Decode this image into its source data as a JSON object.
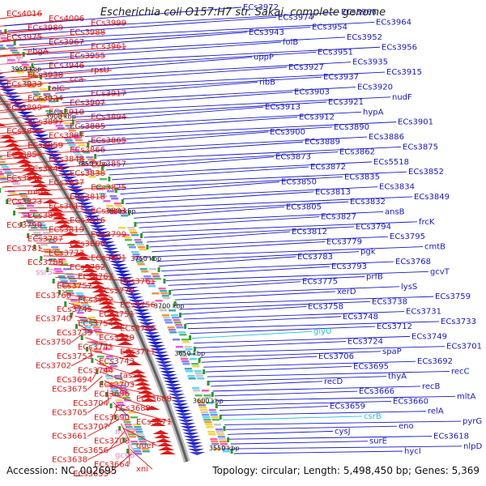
{
  "title": "Escherichia coli O157:H7 str. Sakai, complete genome",
  "footer": {
    "accession": "Accession: NC_002695",
    "summary": "Topology: circular; Length: 5,498,450 bp; Genes: 5,369"
  },
  "colors": {
    "forward": "#e01818",
    "reverse": "#1818d0",
    "rna_pink": "#f080c8",
    "rna_cyan": "#20c0e0",
    "backbone": "#808080"
  },
  "kbp_marks": [
    "3950 kbp",
    "3900 kbp",
    "3850 kbp",
    "3800 kbp",
    "3750 kbp",
    "3700 kbp",
    "3650 kbp",
    "3600 kbp",
    "3550 kbp"
  ],
  "left_labels": [
    {
      "t": "ECs4016",
      "c": "f"
    },
    {
      "t": "ECs4006",
      "c": "f"
    },
    {
      "t": "ECs3999",
      "c": "f"
    },
    {
      "t": "ECs3989",
      "c": "f"
    },
    {
      "t": "ECs3988",
      "c": "f"
    },
    {
      "t": "ECs3975",
      "c": "f"
    },
    {
      "t": "ECs3967",
      "c": "f"
    },
    {
      "t": "ECs3961",
      "c": "f"
    },
    {
      "t": "ebgA",
      "c": "f"
    },
    {
      "t": "ECs3955",
      "c": "f"
    },
    {
      "t": "ileX",
      "c": "p"
    },
    {
      "t": "ECs3946",
      "c": "f"
    },
    {
      "t": "rpsU",
      "c": "f"
    },
    {
      "t": "ECs3938",
      "c": "f"
    },
    {
      "t": "cca",
      "c": "f"
    },
    {
      "t": "ECs3933",
      "c": "f"
    },
    {
      "t": "tolC",
      "c": "f"
    },
    {
      "t": "ECs3917",
      "c": "f"
    },
    {
      "t": "ECs3924",
      "c": "f"
    },
    {
      "t": "ECs3907",
      "c": "f"
    },
    {
      "t": "ECs3899",
      "c": "f"
    },
    {
      "t": "ECs3910",
      "c": "f"
    },
    {
      "t": "ECs3894",
      "c": "f"
    },
    {
      "t": "ECs3897",
      "c": "f"
    },
    {
      "t": "ECs3885",
      "c": "f"
    },
    {
      "t": "ECs3874",
      "c": "f"
    },
    {
      "t": "ECs3887",
      "c": "f"
    },
    {
      "t": "ECs3865",
      "c": "f"
    },
    {
      "t": "ECs3859",
      "c": "f"
    },
    {
      "t": "ECs3866",
      "c": "f"
    },
    {
      "t": "ECs3854",
      "c": "f"
    },
    {
      "t": "ECs3848",
      "c": "f"
    },
    {
      "t": "ECs3857",
      "c": "f"
    },
    {
      "t": "ECs3843",
      "c": "f"
    },
    {
      "t": "ECs3838",
      "c": "f"
    },
    {
      "t": "ECs3846",
      "c": "f"
    },
    {
      "t": "ECs3837",
      "c": "f"
    },
    {
      "t": "ECs3825",
      "c": "f"
    },
    {
      "t": "mltC",
      "c": "f"
    },
    {
      "t": "ECs3818",
      "c": "f"
    },
    {
      "t": "ECs3823",
      "c": "f"
    },
    {
      "t": "ECs3811",
      "c": "f"
    },
    {
      "t": "ECs3803",
      "c": "f"
    },
    {
      "t": "ECs3831",
      "c": "f"
    },
    {
      "t": "ECs3816",
      "c": "f"
    },
    {
      "t": "ECs3790",
      "c": "f"
    },
    {
      "t": "ECs3819",
      "c": "f"
    },
    {
      "t": "ECs3799",
      "c": "f"
    },
    {
      "t": "ECs3787",
      "c": "f"
    },
    {
      "t": "ECs3800",
      "c": "f"
    },
    {
      "t": "ECs3781",
      "c": "f"
    },
    {
      "t": "ECs3773",
      "c": "f"
    },
    {
      "t": "ECs3801",
      "c": "f"
    },
    {
      "t": "ECs3788",
      "c": "f"
    },
    {
      "t": "ECs3782",
      "c": "f"
    },
    {
      "t": "ssrS",
      "c": "p"
    },
    {
      "t": "ECs3767",
      "c": "f"
    },
    {
      "t": "ECs3761",
      "c": "f"
    },
    {
      "t": "ECs3757",
      "c": "f"
    },
    {
      "t": "ECs3770",
      "c": "f"
    },
    {
      "t": "ECs3760",
      "c": "f"
    },
    {
      "t": "ECs3752",
      "c": "f"
    },
    {
      "t": "ECs3756",
      "c": "f"
    },
    {
      "t": "ECs3745",
      "c": "f"
    },
    {
      "t": "ECs3751",
      "c": "f"
    },
    {
      "t": "ECs3740",
      "c": "f"
    },
    {
      "t": "ECs3754",
      "c": "f"
    },
    {
      "t": "ECs3746",
      "c": "f"
    },
    {
      "t": "ECs3739",
      "c": "f"
    },
    {
      "t": "ECs3720",
      "c": "f"
    },
    {
      "t": "ECs3750",
      "c": "f"
    },
    {
      "t": "ECs3741",
      "c": "f"
    },
    {
      "t": "ECs3711",
      "c": "f"
    },
    {
      "t": "ECs3753",
      "c": "f"
    },
    {
      "t": "ECs3743",
      "c": "f"
    },
    {
      "t": "ECs3702",
      "c": "f"
    },
    {
      "t": "ECs3744",
      "c": "f"
    },
    {
      "t": "tas",
      "c": "f"
    },
    {
      "t": "ECs3694",
      "c": "f"
    },
    {
      "t": "ECs3703",
      "c": "f"
    },
    {
      "t": "ECs3675",
      "c": "f"
    },
    {
      "t": "ECs3696",
      "c": "f"
    },
    {
      "t": "ECs3688",
      "c": "f"
    },
    {
      "t": "ECs3704",
      "c": "f"
    },
    {
      "t": "ECs3689",
      "c": "f"
    },
    {
      "t": "ECs3705",
      "c": "f"
    },
    {
      "t": "ECs3690",
      "c": "f"
    },
    {
      "t": "ECs3671",
      "c": "f"
    },
    {
      "t": "ECs3707",
      "c": "f"
    },
    {
      "t": "metZ",
      "c": "p"
    },
    {
      "t": "ECs3661",
      "c": "f"
    },
    {
      "t": "ECs3708",
      "c": "f"
    },
    {
      "t": "queF",
      "c": "f"
    },
    {
      "t": "ECs3656",
      "c": "f"
    },
    {
      "t": "gcvB",
      "c": "p"
    },
    {
      "t": "ECs3638",
      "c": "f"
    },
    {
      "t": "ECs3664",
      "c": "f"
    },
    {
      "t": "xni",
      "c": "f"
    },
    {
      "t": "ECs3655",
      "c": "f"
    }
  ],
  "right_labels": [
    {
      "t": "ECs3972",
      "c": "r"
    },
    {
      "t": "ECs3966",
      "c": "r"
    },
    {
      "t": "ECs3974",
      "c": "r"
    },
    {
      "t": "ECs3964",
      "c": "r"
    },
    {
      "t": "ECs3954",
      "c": "r"
    },
    {
      "t": "ECs3943",
      "c": "r"
    },
    {
      "t": "ECs3952",
      "c": "r"
    },
    {
      "t": "folB",
      "c": "r"
    },
    {
      "t": "ECs3956",
      "c": "r"
    },
    {
      "t": "ECs3951",
      "c": "r"
    },
    {
      "t": "uppP",
      "c": "r"
    },
    {
      "t": "ECs3935",
      "c": "r"
    },
    {
      "t": "ECs3927",
      "c": "r"
    },
    {
      "t": "ECs3915",
      "c": "r"
    },
    {
      "t": "ECs3937",
      "c": "r"
    },
    {
      "t": "ribB",
      "c": "r"
    },
    {
      "t": "ECs3920",
      "c": "r"
    },
    {
      "t": "ECs3903",
      "c": "r"
    },
    {
      "t": "nudF",
      "c": "r"
    },
    {
      "t": "ECs3921",
      "c": "r"
    },
    {
      "t": "ECs3913",
      "c": "r"
    },
    {
      "t": "hypA",
      "c": "r"
    },
    {
      "t": "ECs3912",
      "c": "r"
    },
    {
      "t": "ECs3901",
      "c": "r"
    },
    {
      "t": "ECs3890",
      "c": "r"
    },
    {
      "t": "ECs3900",
      "c": "r"
    },
    {
      "t": "ECs3886",
      "c": "r"
    },
    {
      "t": "ECs3889",
      "c": "r"
    },
    {
      "t": "ECs3875",
      "c": "r"
    },
    {
      "t": "ECs3862",
      "c": "r"
    },
    {
      "t": "ECs3873",
      "c": "r"
    },
    {
      "t": "ECs5518",
      "c": "r"
    },
    {
      "t": "ECs3872",
      "c": "r"
    },
    {
      "t": "ECs3852",
      "c": "r"
    },
    {
      "t": "ECs3835",
      "c": "r"
    },
    {
      "t": "ECs3850",
      "c": "r"
    },
    {
      "t": "ECs3834",
      "c": "r"
    },
    {
      "t": "ECs3813",
      "c": "r"
    },
    {
      "t": "ECs3849",
      "c": "r"
    },
    {
      "t": "ECs3832",
      "c": "r"
    },
    {
      "t": "ECs3805",
      "c": "r"
    },
    {
      "t": "ansB",
      "c": "r"
    },
    {
      "t": "ECs3827",
      "c": "r"
    },
    {
      "t": "frcK",
      "c": "r"
    },
    {
      "t": "ECs3794",
      "c": "r"
    },
    {
      "t": "ECs3812",
      "c": "r"
    },
    {
      "t": "ECs3795",
      "c": "r"
    },
    {
      "t": "ECs3779",
      "c": "r"
    },
    {
      "t": "cmtB",
      "c": "r"
    },
    {
      "t": "pgk",
      "c": "r"
    },
    {
      "t": "ECs3783",
      "c": "r"
    },
    {
      "t": "ECs3768",
      "c": "r"
    },
    {
      "t": "ECs3793",
      "c": "r"
    },
    {
      "t": "gcvT",
      "c": "r"
    },
    {
      "t": "prfB",
      "c": "r"
    },
    {
      "t": "ECs3775",
      "c": "r"
    },
    {
      "t": "lysS",
      "c": "r"
    },
    {
      "t": "xerD",
      "c": "r"
    },
    {
      "t": "ECs3759",
      "c": "r"
    },
    {
      "t": "ECs3738",
      "c": "r"
    },
    {
      "t": "ECs3758",
      "c": "r"
    },
    {
      "t": "ECs3731",
      "c": "r"
    },
    {
      "t": "ECs3748",
      "c": "r"
    },
    {
      "t": "ECs3733",
      "c": "r"
    },
    {
      "t": "ECs3712",
      "c": "r"
    },
    {
      "t": "glyU",
      "c": "c"
    },
    {
      "t": "ECs3749",
      "c": "r"
    },
    {
      "t": "ECs3724",
      "c": "r"
    },
    {
      "t": "ECs3701",
      "c": "r"
    },
    {
      "t": "spaP",
      "c": "r"
    },
    {
      "t": "ECs3706",
      "c": "r"
    },
    {
      "t": "ECs3692",
      "c": "r"
    },
    {
      "t": "ECs3695",
      "c": "r"
    },
    {
      "t": "recC",
      "c": "r"
    },
    {
      "t": "thyA",
      "c": "r"
    },
    {
      "t": "recD",
      "c": "r"
    },
    {
      "t": "recB",
      "c": "r"
    },
    {
      "t": "ECs3666",
      "c": "r"
    },
    {
      "t": "mltA",
      "c": "r"
    },
    {
      "t": "ECs3660",
      "c": "r"
    },
    {
      "t": "ECs3659",
      "c": "r"
    },
    {
      "t": "relA",
      "c": "r"
    },
    {
      "t": "csrB",
      "c": "c"
    },
    {
      "t": "pyrG",
      "c": "r"
    },
    {
      "t": "eno",
      "c": "r"
    },
    {
      "t": "cysJ",
      "c": "r"
    },
    {
      "t": "ECs3618",
      "c": "r"
    },
    {
      "t": "surE",
      "c": "r"
    },
    {
      "t": "nlpD",
      "c": "r"
    },
    {
      "t": "hycI",
      "c": "r"
    }
  ]
}
